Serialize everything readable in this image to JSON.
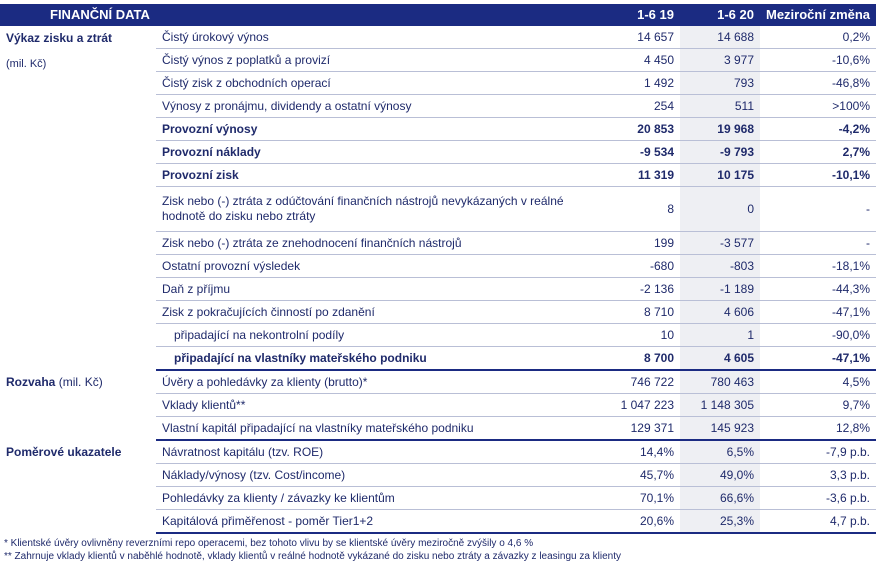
{
  "header": {
    "title": "FINANČNÍ DATA",
    "col1": "1-6 19",
    "col2": "1-6 20",
    "col3": "Meziroční změna"
  },
  "sections": {
    "pl": {
      "title": "Výkaz zisku a ztrát",
      "unit": "(mil. Kč)"
    },
    "bs": {
      "title": "Rozvaha",
      "unit": "(mil. Kč)"
    },
    "ratios": {
      "title": "Poměrové ukazatele"
    }
  },
  "pl_rows": [
    {
      "label": "Čistý úrokový výnos",
      "v19": "14 657",
      "v20": "14 688",
      "chg": "0,2%"
    },
    {
      "label": "Čistý výnos z poplatků a provizí",
      "v19": "4 450",
      "v20": "3 977",
      "chg": "-10,6%"
    },
    {
      "label": "Čistý zisk z obchodních operací",
      "v19": "1 492",
      "v20": "793",
      "chg": "-46,8%"
    },
    {
      "label": "Výnosy z pronájmu, dividendy a ostatní výnosy",
      "v19": "254",
      "v20": "511",
      "chg": ">100%"
    },
    {
      "label": "Provozní výnosy",
      "v19": "20 853",
      "v20": "19 968",
      "chg": "-4,2%"
    },
    {
      "label": "Provozní náklady",
      "v19": "-9 534",
      "v20": "-9 793",
      "chg": "2,7%"
    },
    {
      "label": "Provozní zisk",
      "v19": "11 319",
      "v20": "10 175",
      "chg": "-10,1%"
    },
    {
      "label": "Zisk nebo (-) ztráta z odúčtování finančních nástrojů nevykázaných v reálné hodnotě do zisku nebo ztráty",
      "v19": "8",
      "v20": "0",
      "chg": "-"
    },
    {
      "label": "Zisk nebo (-) ztráta ze znehodnocení finančních nástrojů",
      "v19": "199",
      "v20": "-3 577",
      "chg": "-"
    },
    {
      "label": "Ostatní provozní výsledek",
      "v19": "-680",
      "v20": "-803",
      "chg": "-18,1%"
    },
    {
      "label": "Daň z příjmu",
      "v19": "-2 136",
      "v20": "-1 189",
      "chg": "-44,3%"
    },
    {
      "label": "Zisk z pokračujících činností po zdanění",
      "v19": "8 710",
      "v20": "4 606",
      "chg": "-47,1%"
    },
    {
      "label": "připadající na nekontrolní podíly",
      "v19": "10",
      "v20": "1",
      "chg": "-90,0%"
    },
    {
      "label": "připadající na vlastníky mateřského podniku",
      "v19": "8 700",
      "v20": "4 605",
      "chg": "-47,1%"
    }
  ],
  "bs_rows": [
    {
      "label": "Úvěry a pohledávky za klienty (brutto)*",
      "v19": "746 722",
      "v20": "780 463",
      "chg": "4,5%"
    },
    {
      "label": "Vklady klientů**",
      "v19": "1 047 223",
      "v20": "1 148 305",
      "chg": "9,7%"
    },
    {
      "label": "Vlastní kapitál připadající na vlastníky mateřského podniku",
      "v19": "129 371",
      "v20": "145 923",
      "chg": "12,8%"
    }
  ],
  "ratio_rows": [
    {
      "label": "Návratnost kapitálu (tzv. ROE)",
      "v19": "14,4%",
      "v20": "6,5%",
      "chg": "-7,9 p.b."
    },
    {
      "label": "Náklady/výnosy (tzv. Cost/income)",
      "v19": "45,7%",
      "v20": "49,0%",
      "chg": "3,3 p.b."
    },
    {
      "label": "Pohledávky za klienty / závazky ke klientům",
      "v19": "70,1%",
      "v20": "66,6%",
      "chg": "-3,6 p.b."
    },
    {
      "label": "Kapitálová přiměřenost - poměr Tier1+2",
      "v19": "20,6%",
      "v20": "25,3%",
      "chg": "4,7 p.b."
    }
  ],
  "footnotes": {
    "f1": "* Klientské úvěry ovlivněny reverzními repo operacemi, bez tohoto vlivu by se klientské úvěry meziročně zvýšily o 4,6 %",
    "f2": "** Zahrnuje vklady klientů v naběhlé hodnotě, vklady klientů v reálné hodnotě vykázané do zisku nebo ztráty a závazky z leasingu za klienty"
  }
}
